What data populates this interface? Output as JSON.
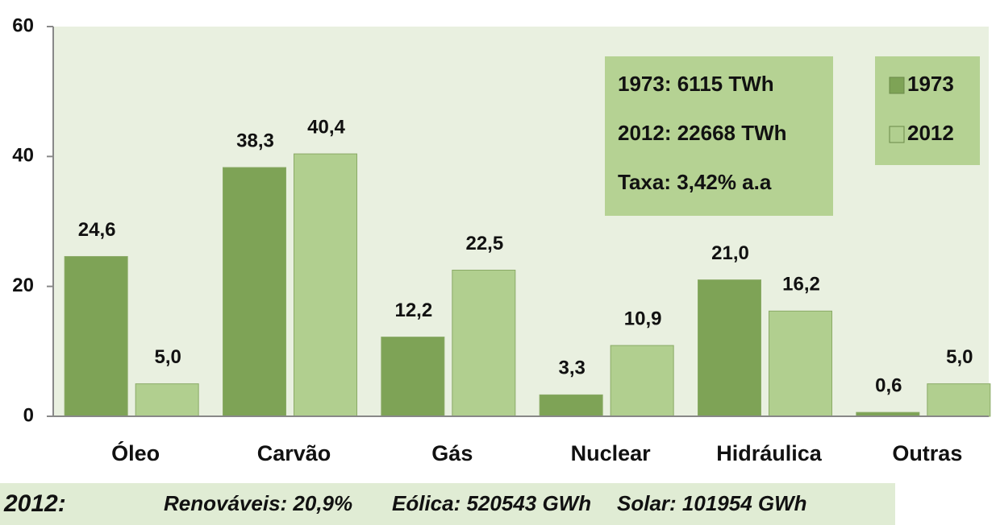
{
  "chart_data": {
    "type": "bar",
    "categories": [
      "Óleo",
      "Carvão",
      "Gás",
      "Nuclear",
      "Hidráulica",
      "Outras"
    ],
    "series": [
      {
        "name": "1973",
        "color": "#7ea356",
        "values": [
          24.6,
          38.3,
          12.2,
          3.3,
          21.0,
          0.6
        ],
        "value_labels": [
          "24,6",
          "38,3",
          "12,2",
          "3,3",
          "21,0",
          "0,6"
        ]
      },
      {
        "name": "2012",
        "color": "#b1cf8f",
        "values": [
          5.0,
          40.4,
          22.5,
          10.9,
          16.2,
          5.0
        ],
        "value_labels": [
          "5,0",
          "40,4",
          "22,5",
          "10,9",
          "16,2",
          "5,0"
        ]
      }
    ],
    "ylim": [
      0,
      60
    ],
    "yticks": [
      0,
      20,
      40,
      60
    ],
    "legend": "upper right",
    "info_box": [
      "1973: 6115 TWh",
      "2012: 22668 TWh",
      "Taxa: 3,42% a.a"
    ],
    "footer": [
      "2012:",
      "Renováveis: 20,9%",
      "Eólica: 520543 GWh",
      "Solar: 101954 GWh"
    ]
  }
}
